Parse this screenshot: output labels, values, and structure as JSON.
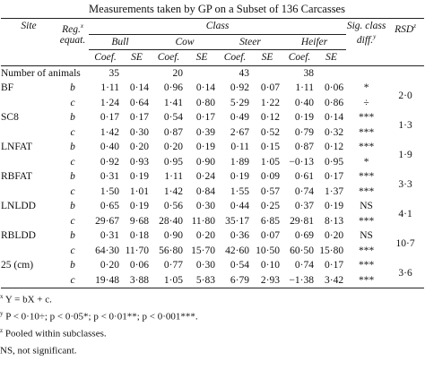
{
  "title": "Measurements taken by GP on a Subset of 136 Carcasses",
  "table": {
    "headers": {
      "site": "Site",
      "reg": "Reg.",
      "reg_sup": "x",
      "equat": "equat.",
      "class": "Class",
      "sig": "Sig. class diff.",
      "sig_sup": "y",
      "rsd": "RSD",
      "rsd_sup": "z",
      "classes": [
        "Bull",
        "Cow",
        "Steer",
        "Heifer"
      ],
      "subheaders": [
        "Coef.",
        "SE"
      ]
    },
    "animals": {
      "label": "Number of animals",
      "values": [
        "35",
        "20",
        "43",
        "38"
      ]
    },
    "rows": [
      {
        "site": "BF",
        "rsd": "2·0",
        "lines": [
          {
            "eq": "b",
            "cells": [
              "1·11",
              "0·14",
              "0·96",
              "0·14",
              "0·92",
              "0·07",
              "1·11",
              "0·06"
            ],
            "sig": "*"
          },
          {
            "eq": "c",
            "cells": [
              "1·24",
              "0·64",
              "1·41",
              "0·80",
              "5·29",
              "1·22",
              "0·40",
              "0·86"
            ],
            "sig": "÷"
          }
        ]
      },
      {
        "site": "SC8",
        "rsd": "1·3",
        "lines": [
          {
            "eq": "b",
            "cells": [
              "0·17",
              "0·17",
              "0·54",
              "0·17",
              "0·49",
              "0·12",
              "0·19",
              "0·14"
            ],
            "sig": "***"
          },
          {
            "eq": "c",
            "cells": [
              "1·42",
              "0·30",
              "0·87",
              "0·39",
              "2·67",
              "0·52",
              "0·79",
              "0·32"
            ],
            "sig": "***"
          }
        ]
      },
      {
        "site": "LNFAT",
        "rsd": "1·9",
        "lines": [
          {
            "eq": "b",
            "cells": [
              "0·40",
              "0·20",
              "0·20",
              "0·19",
              "0·11",
              "0·15",
              "0·87",
              "0·12"
            ],
            "sig": "***"
          },
          {
            "eq": "c",
            "cells": [
              "0·92",
              "0·93",
              "0·95",
              "0·90",
              "1·89",
              "1·05",
              "−0·13",
              "0·95"
            ],
            "sig": "*"
          }
        ]
      },
      {
        "site": "RBFAT",
        "rsd": "3·3",
        "lines": [
          {
            "eq": "b",
            "cells": [
              "0·31",
              "0·19",
              "1·11",
              "0·24",
              "0·19",
              "0·09",
              "0·61",
              "0·17"
            ],
            "sig": "***"
          },
          {
            "eq": "c",
            "cells": [
              "1·50",
              "1·01",
              "1·42",
              "0·84",
              "1·55",
              "0·57",
              "0·74",
              "1·37"
            ],
            "sig": "***"
          }
        ]
      },
      {
        "site": "LNLDD",
        "rsd": "4·1",
        "lines": [
          {
            "eq": "b",
            "cells": [
              "0·65",
              "0·19",
              "0·56",
              "0·30",
              "0·44",
              "0·25",
              "0·37",
              "0·19"
            ],
            "sig": "NS"
          },
          {
            "eq": "c",
            "cells": [
              "29·67",
              "9·68",
              "28·40",
              "11·80",
              "35·17",
              "6·85",
              "29·81",
              "8·13"
            ],
            "sig": "***"
          }
        ]
      },
      {
        "site": "RBLDD",
        "rsd": "10·7",
        "lines": [
          {
            "eq": "b",
            "cells": [
              "0·31",
              "0·18",
              "0·90",
              "0·20",
              "0·36",
              "0·07",
              "0·69",
              "0·20"
            ],
            "sig": "NS"
          },
          {
            "eq": "c",
            "cells": [
              "64·30",
              "11·70",
              "56·80",
              "15·70",
              "42·60",
              "10·50",
              "60·50",
              "15·80"
            ],
            "sig": "***"
          }
        ]
      },
      {
        "site": "25 (cm)",
        "rsd": "3·6",
        "lines": [
          {
            "eq": "b",
            "cells": [
              "0·20",
              "0·06",
              "0·77",
              "0·30",
              "0·54",
              "0·10",
              "0·74",
              "0·17"
            ],
            "sig": "***"
          },
          {
            "eq": "c",
            "cells": [
              "19·48",
              "3·88",
              "1·05",
              "5·83",
              "6·79",
              "2·93",
              "−1·38",
              "3·42"
            ],
            "sig": "***"
          }
        ]
      }
    ]
  },
  "footnotes": [
    {
      "mark": "x",
      "text": "Y = bX + c."
    },
    {
      "mark": "y",
      "text": "P < 0·10÷; p < 0·05*; p < 0·01**; p < 0·001***."
    },
    {
      "mark": "z",
      "text": "Pooled within subclasses."
    },
    {
      "mark": "",
      "text": "NS, not significant."
    }
  ]
}
